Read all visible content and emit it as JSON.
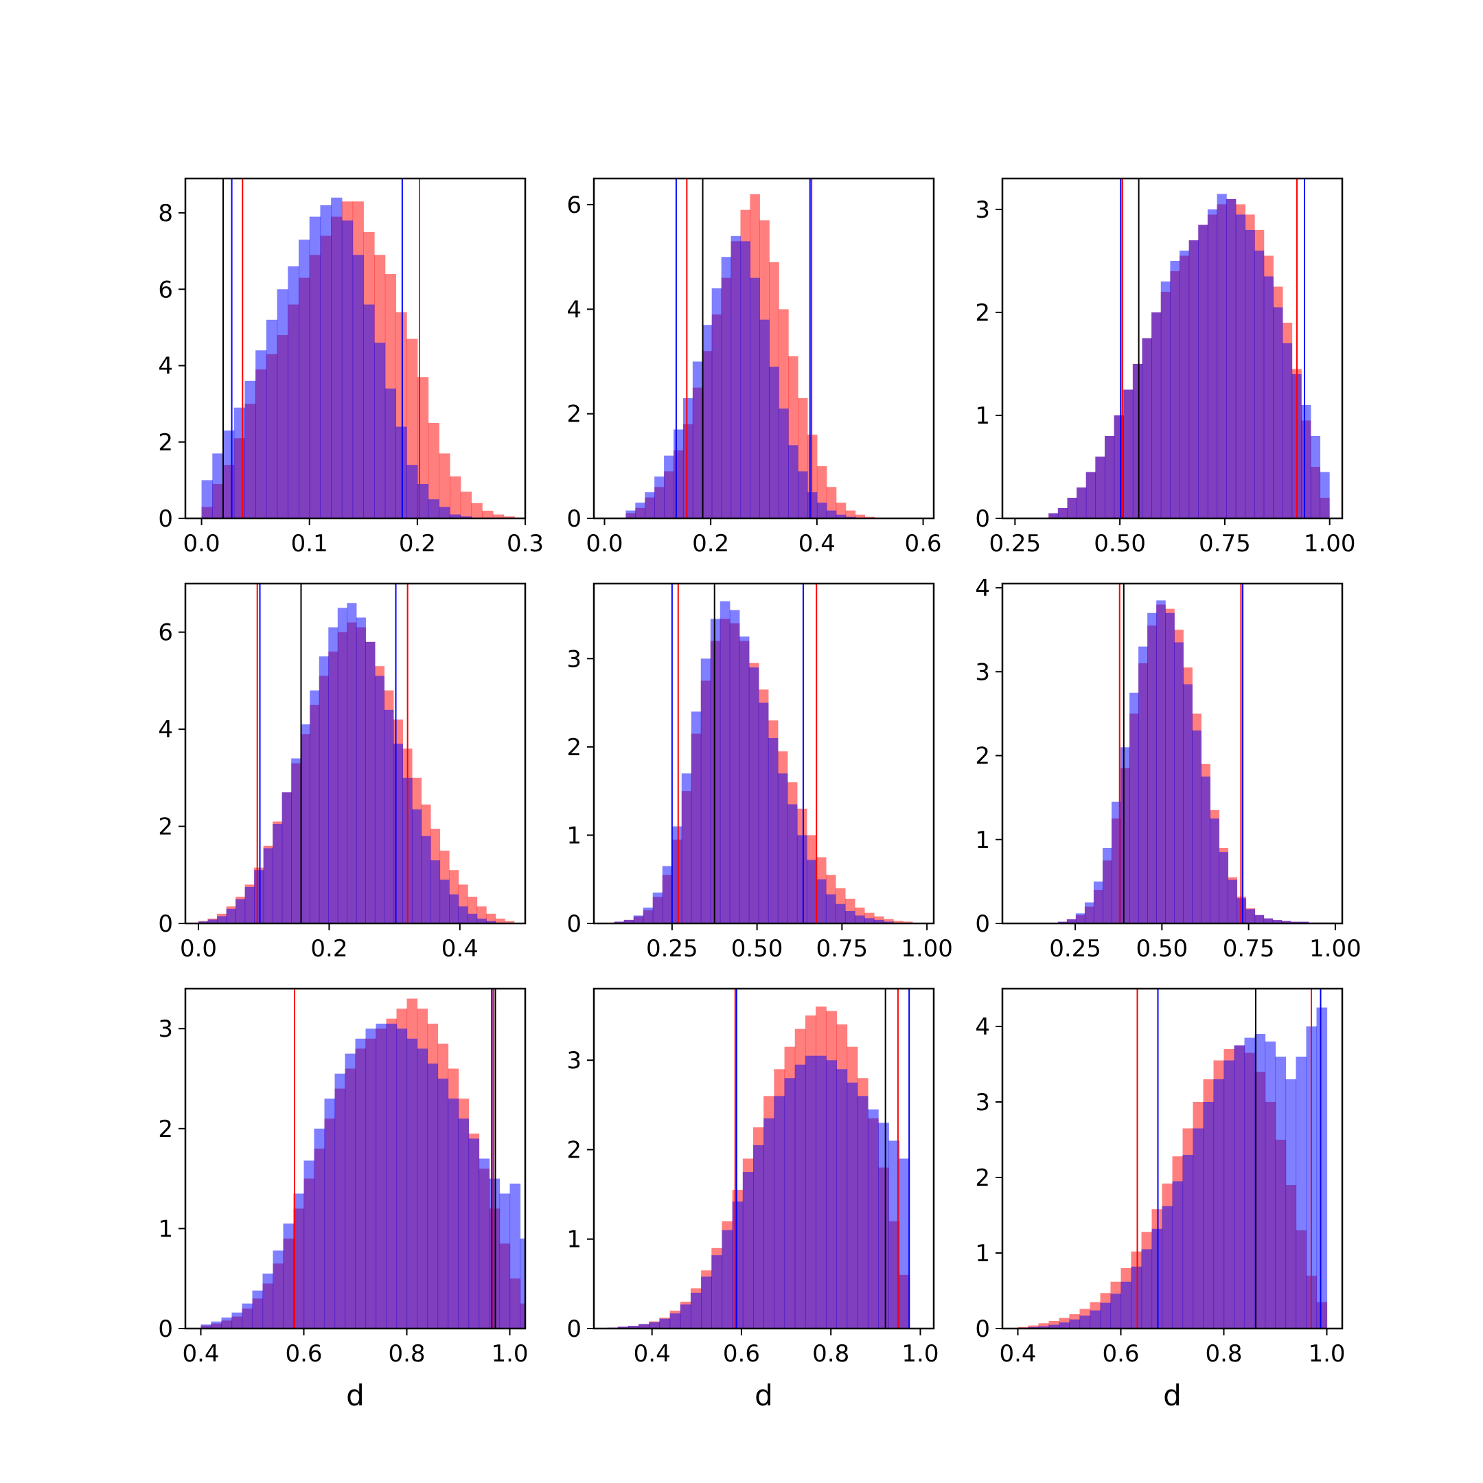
{
  "chart_data": [
    {
      "type": "histogram",
      "xlabel": "",
      "xlim": [
        -0.015,
        0.3
      ],
      "ylim": [
        0,
        8.9
      ],
      "xticks": [
        "0.0",
        "0.1",
        "0.2",
        "0.3"
      ],
      "xtick_values": [
        0,
        0.1,
        0.2,
        0.3
      ],
      "yticks": [
        "0",
        "2",
        "4",
        "6",
        "8"
      ],
      "ytick_values": [
        0,
        2,
        4,
        6,
        8
      ],
      "bin_start": 0.0,
      "bin_width": 0.01,
      "series": [
        {
          "color": "#ff0000",
          "values": [
            0.3,
            0.9,
            1.4,
            2.1,
            3.0,
            3.9,
            4.3,
            4.8,
            5.6,
            6.3,
            6.9,
            7.4,
            7.9,
            8.3,
            8.3,
            7.5,
            6.9,
            6.4,
            5.4,
            4.7,
            3.7,
            2.5,
            1.7,
            1.1,
            0.7,
            0.4,
            0.2,
            0.1,
            0.05,
            0.02
          ]
        },
        {
          "color": "#0000ff",
          "values": [
            1.0,
            1.7,
            2.3,
            2.9,
            3.6,
            4.4,
            5.2,
            6.0,
            6.6,
            7.3,
            7.9,
            8.2,
            8.4,
            7.8,
            6.9,
            5.6,
            4.6,
            3.4,
            2.4,
            1.4,
            0.9,
            0.5,
            0.3,
            0.1,
            0.05
          ]
        }
      ],
      "vlines": [
        {
          "color": "#000000",
          "x": 0.02
        },
        {
          "color": "#0000ff",
          "x": 0.028
        },
        {
          "color": "#ff0000",
          "x": 0.038
        },
        {
          "color": "#0000ff",
          "x": 0.186
        },
        {
          "color": "#ff0000",
          "x": 0.202
        }
      ]
    },
    {
      "type": "histogram",
      "xlabel": "",
      "xlim": [
        -0.02,
        0.62
      ],
      "ylim": [
        0,
        6.5
      ],
      "xticks": [
        "0.0",
        "0.2",
        "0.4",
        "0.6"
      ],
      "xtick_values": [
        0,
        0.2,
        0.4,
        0.6
      ],
      "yticks": [
        "0",
        "2",
        "4",
        "6"
      ],
      "ytick_values": [
        0,
        2,
        4,
        6
      ],
      "bin_start": 0.04,
      "bin_width": 0.018,
      "series": [
        {
          "color": "#ff0000",
          "values": [
            0.1,
            0.2,
            0.4,
            0.6,
            0.9,
            1.3,
            1.8,
            2.5,
            3.2,
            3.9,
            4.6,
            5.3,
            5.9,
            6.2,
            5.7,
            4.9,
            4.0,
            3.1,
            2.3,
            1.6,
            1.0,
            0.6,
            0.3,
            0.15,
            0.07,
            0.03
          ]
        },
        {
          "color": "#0000ff",
          "values": [
            0.15,
            0.3,
            0.5,
            0.8,
            1.2,
            1.7,
            2.3,
            3.0,
            3.7,
            4.4,
            5.0,
            5.4,
            5.3,
            4.6,
            3.8,
            2.9,
            2.1,
            1.4,
            0.9,
            0.5,
            0.3,
            0.15,
            0.07,
            0.03
          ]
        }
      ],
      "vlines": [
        {
          "color": "#0000ff",
          "x": 0.135
        },
        {
          "color": "#ff0000",
          "x": 0.155
        },
        {
          "color": "#000000",
          "x": 0.185
        },
        {
          "color": "#0000ff",
          "x": 0.387
        },
        {
          "color": "#ff0000",
          "x": 0.39
        }
      ]
    },
    {
      "type": "histogram",
      "xlabel": "",
      "xlim": [
        0.22,
        1.03
      ],
      "ylim": [
        0,
        3.3
      ],
      "xticks": [
        "0.25",
        "0.50",
        "0.75",
        "1.00"
      ],
      "xtick_values": [
        0.25,
        0.5,
        0.75,
        1.0
      ],
      "yticks": [
        "0",
        "1",
        "2",
        "3"
      ],
      "ytick_values": [
        0,
        1,
        2,
        3
      ],
      "bin_start": 0.33,
      "bin_width": 0.0223,
      "series": [
        {
          "color": "#ff0000",
          "values": [
            0.05,
            0.1,
            0.2,
            0.3,
            0.45,
            0.6,
            0.8,
            1.0,
            1.25,
            1.5,
            1.75,
            2.0,
            2.2,
            2.4,
            2.55,
            2.7,
            2.85,
            2.95,
            3.05,
            3.1,
            3.05,
            2.95,
            2.8,
            2.55,
            2.25,
            1.9,
            1.45,
            0.95,
            0.5,
            0.2
          ]
        },
        {
          "color": "#0000ff",
          "values": [
            0.05,
            0.1,
            0.2,
            0.3,
            0.45,
            0.6,
            0.8,
            1.0,
            1.25,
            1.5,
            1.75,
            2.0,
            2.3,
            2.5,
            2.6,
            2.7,
            2.85,
            3.0,
            3.15,
            3.1,
            2.95,
            2.8,
            2.6,
            2.35,
            2.05,
            1.7,
            1.4,
            1.1,
            0.8,
            0.45
          ]
        }
      ],
      "vlines": [
        {
          "color": "#0000ff",
          "x": 0.502
        },
        {
          "color": "#ff0000",
          "x": 0.506
        },
        {
          "color": "#000000",
          "x": 0.545
        },
        {
          "color": "#ff0000",
          "x": 0.922
        },
        {
          "color": "#0000ff",
          "x": 0.94
        }
      ]
    },
    {
      "type": "histogram",
      "xlabel": "",
      "xlim": [
        -0.02,
        0.5
      ],
      "ylim": [
        0,
        7.0
      ],
      "xticks": [
        "0.0",
        "0.2",
        "0.4"
      ],
      "xtick_values": [
        0,
        0.2,
        0.4
      ],
      "yticks": [
        "0",
        "2",
        "4",
        "6"
      ],
      "ytick_values": [
        0,
        2,
        4,
        6
      ],
      "bin_start": 0.0,
      "bin_width": 0.0142,
      "series": [
        {
          "color": "#ff0000",
          "values": [
            0.05,
            0.1,
            0.2,
            0.35,
            0.55,
            0.8,
            1.15,
            1.6,
            2.1,
            2.7,
            3.3,
            3.9,
            4.5,
            5.1,
            5.6,
            6.0,
            6.2,
            6.1,
            5.8,
            5.3,
            4.8,
            4.2,
            3.6,
            3.0,
            2.45,
            1.95,
            1.5,
            1.1,
            0.8,
            0.55,
            0.35,
            0.2,
            0.1,
            0.05
          ]
        },
        {
          "color": "#0000ff",
          "values": [
            0.04,
            0.08,
            0.15,
            0.3,
            0.5,
            0.75,
            1.1,
            1.55,
            2.05,
            2.7,
            3.4,
            4.1,
            4.8,
            5.5,
            6.1,
            6.5,
            6.6,
            6.3,
            5.8,
            5.1,
            4.4,
            3.7,
            3.0,
            2.35,
            1.8,
            1.3,
            0.9,
            0.6,
            0.35,
            0.2,
            0.1,
            0.05
          ]
        }
      ],
      "vlines": [
        {
          "color": "#ff0000",
          "x": 0.09
        },
        {
          "color": "#0000ff",
          "x": 0.094
        },
        {
          "color": "#000000",
          "x": 0.157
        },
        {
          "color": "#0000ff",
          "x": 0.302
        },
        {
          "color": "#ff0000",
          "x": 0.32
        }
      ]
    },
    {
      "type": "histogram",
      "xlabel": "",
      "xlim": [
        0.02,
        1.02
      ],
      "ylim": [
        0,
        3.85
      ],
      "xticks": [
        "0.25",
        "0.50",
        "0.75",
        "1.00"
      ],
      "xtick_values": [
        0.25,
        0.5,
        0.75,
        1.0
      ],
      "yticks": [
        "0",
        "1",
        "2",
        "3"
      ],
      "ytick_values": [
        0,
        1,
        2,
        3
      ],
      "bin_start": 0.08,
      "bin_width": 0.0283,
      "series": [
        {
          "color": "#ff0000",
          "values": [
            0.02,
            0.04,
            0.08,
            0.15,
            0.3,
            0.55,
            0.95,
            1.5,
            2.15,
            2.75,
            3.2,
            3.45,
            3.4,
            3.2,
            2.95,
            2.65,
            2.3,
            1.95,
            1.6,
            1.3,
            1.0,
            0.75,
            0.55,
            0.4,
            0.28,
            0.18,
            0.12,
            0.08,
            0.05,
            0.03,
            0.02
          ]
        },
        {
          "color": "#0000ff",
          "values": [
            0.02,
            0.04,
            0.09,
            0.18,
            0.35,
            0.65,
            1.1,
            1.7,
            2.4,
            3.0,
            3.45,
            3.65,
            3.55,
            3.25,
            2.9,
            2.5,
            2.1,
            1.7,
            1.35,
            1.0,
            0.72,
            0.5,
            0.33,
            0.22,
            0.14,
            0.09,
            0.06,
            0.04,
            0.02
          ]
        }
      ],
      "vlines": [
        {
          "color": "#0000ff",
          "x": 0.25
        },
        {
          "color": "#ff0000",
          "x": 0.268
        },
        {
          "color": "#000000",
          "x": 0.375
        },
        {
          "color": "#0000ff",
          "x": 0.636
        },
        {
          "color": "#ff0000",
          "x": 0.675
        }
      ]
    },
    {
      "type": "histogram",
      "xlabel": "",
      "xlim": [
        0.04,
        1.02
      ],
      "ylim": [
        0,
        4.05
      ],
      "xticks": [
        "0.25",
        "0.50",
        "0.75",
        "1.00"
      ],
      "xtick_values": [
        0.25,
        0.5,
        0.75,
        1.0
      ],
      "yticks": [
        "0",
        "1",
        "2",
        "3",
        "4"
      ],
      "ytick_values": [
        0,
        1,
        2,
        3,
        4
      ],
      "bin_start": 0.2,
      "bin_width": 0.0258,
      "series": [
        {
          "color": "#ff0000",
          "values": [
            0.02,
            0.05,
            0.1,
            0.2,
            0.4,
            0.75,
            1.25,
            1.85,
            2.5,
            3.1,
            3.55,
            3.8,
            3.75,
            3.5,
            3.05,
            2.5,
            1.9,
            1.35,
            0.9,
            0.55,
            0.32,
            0.18,
            0.1,
            0.06,
            0.04,
            0.03,
            0.02,
            0.02,
            0.01,
            0.01,
            0.01
          ]
        },
        {
          "color": "#0000ff",
          "values": [
            0.02,
            0.05,
            0.12,
            0.25,
            0.5,
            0.9,
            1.45,
            2.1,
            2.75,
            3.3,
            3.7,
            3.85,
            3.7,
            3.35,
            2.85,
            2.3,
            1.75,
            1.25,
            0.85,
            0.52,
            0.3,
            0.17,
            0.1,
            0.06,
            0.04,
            0.03,
            0.02,
            0.02,
            0.01,
            0.01,
            0.01
          ]
        }
      ],
      "vlines": [
        {
          "color": "#ff0000",
          "x": 0.378
        },
        {
          "color": "#000000",
          "x": 0.39
        },
        {
          "color": "#ff0000",
          "x": 0.728
        },
        {
          "color": "#0000ff",
          "x": 0.733
        }
      ]
    },
    {
      "type": "histogram",
      "xlabel": "d",
      "xlim": [
        0.37,
        1.03
      ],
      "ylim": [
        0,
        3.4
      ],
      "xticks": [
        "0.4",
        "0.6",
        "0.8",
        "1.0"
      ],
      "xtick_values": [
        0.4,
        0.6,
        0.8,
        1.0
      ],
      "yticks": [
        "0",
        "1",
        "2",
        "3"
      ],
      "ytick_values": [
        0,
        1,
        2,
        3
      ],
      "bin_start": 0.4,
      "bin_width": 0.02,
      "series": [
        {
          "color": "#ff0000",
          "values": [
            0.03,
            0.05,
            0.08,
            0.12,
            0.2,
            0.3,
            0.45,
            0.65,
            0.9,
            1.2,
            1.5,
            1.8,
            2.1,
            2.4,
            2.6,
            2.8,
            2.9,
            3.0,
            3.1,
            3.2,
            3.3,
            3.2,
            3.05,
            2.85,
            2.6,
            2.3,
            1.95,
            1.6,
            1.2,
            0.85,
            0.5,
            0.25
          ]
        },
        {
          "color": "#0000ff",
          "values": [
            0.04,
            0.07,
            0.11,
            0.16,
            0.25,
            0.38,
            0.55,
            0.78,
            1.05,
            1.35,
            1.68,
            2.0,
            2.3,
            2.55,
            2.75,
            2.9,
            3.0,
            3.05,
            3.05,
            3.0,
            2.9,
            2.8,
            2.65,
            2.5,
            2.3,
            2.1,
            1.9,
            1.7,
            1.5,
            1.35,
            1.45,
            0.9
          ]
        }
      ],
      "vlines": [
        {
          "color": "#ff0000",
          "x": 0.582
        },
        {
          "color": "#0000ff",
          "x": 0.965
        },
        {
          "color": "#ff0000",
          "x": 0.968
        },
        {
          "color": "#000000",
          "x": 0.972
        }
      ]
    },
    {
      "type": "histogram",
      "xlabel": "d",
      "xlim": [
        0.27,
        1.03
      ],
      "ylim": [
        0,
        3.8
      ],
      "xticks": [
        "0.4",
        "0.6",
        "0.8",
        "1.0"
      ],
      "xtick_values": [
        0.4,
        0.6,
        0.8,
        1.0
      ],
      "yticks": [
        "0",
        "1",
        "2",
        "3"
      ],
      "ytick_values": [
        0,
        1,
        2,
        3
      ],
      "bin_start": 0.3,
      "bin_width": 0.0233,
      "series": [
        {
          "color": "#ff0000",
          "values": [
            0.01,
            0.02,
            0.03,
            0.05,
            0.08,
            0.12,
            0.2,
            0.3,
            0.45,
            0.65,
            0.9,
            1.2,
            1.55,
            1.9,
            2.25,
            2.6,
            2.9,
            3.15,
            3.35,
            3.5,
            3.6,
            3.55,
            3.4,
            3.15,
            2.8,
            2.35,
            1.8,
            1.2,
            0.6
          ]
        },
        {
          "color": "#0000ff",
          "values": [
            0.01,
            0.02,
            0.03,
            0.05,
            0.07,
            0.11,
            0.17,
            0.27,
            0.4,
            0.58,
            0.82,
            1.1,
            1.42,
            1.75,
            2.05,
            2.35,
            2.6,
            2.8,
            2.95,
            3.05,
            3.05,
            3.0,
            2.9,
            2.75,
            2.6,
            2.45,
            2.3,
            2.1,
            1.9
          ]
        }
      ],
      "vlines": [
        {
          "color": "#ff0000",
          "x": 0.586
        },
        {
          "color": "#0000ff",
          "x": 0.589
        },
        {
          "color": "#000000",
          "x": 0.922
        },
        {
          "color": "#ff0000",
          "x": 0.95
        },
        {
          "color": "#0000ff",
          "x": 0.975
        }
      ]
    },
    {
      "type": "histogram",
      "xlabel": "d",
      "xlim": [
        0.37,
        1.03
      ],
      "ylim": [
        0,
        4.5
      ],
      "xticks": [
        "0.4",
        "0.6",
        "0.8",
        "1.0"
      ],
      "xtick_values": [
        0.4,
        0.6,
        0.8,
        1.0
      ],
      "yticks": [
        "0",
        "1",
        "2",
        "3",
        "4"
      ],
      "ytick_values": [
        0,
        1,
        2,
        3,
        4
      ],
      "bin_start": 0.4,
      "bin_width": 0.02,
      "series": [
        {
          "color": "#ff0000",
          "values": [
            0.02,
            0.04,
            0.07,
            0.1,
            0.14,
            0.19,
            0.26,
            0.35,
            0.47,
            0.62,
            0.8,
            1.02,
            1.28,
            1.58,
            1.92,
            2.28,
            2.65,
            3.0,
            3.3,
            3.55,
            3.7,
            3.75,
            3.65,
            3.4,
            3.0,
            2.5,
            1.9,
            1.3,
            0.7,
            0.35
          ]
        },
        {
          "color": "#0000ff",
          "values": [
            0.01,
            0.02,
            0.03,
            0.05,
            0.08,
            0.12,
            0.17,
            0.24,
            0.34,
            0.46,
            0.62,
            0.82,
            1.05,
            1.32,
            1.62,
            1.95,
            2.3,
            2.65,
            3.0,
            3.3,
            3.55,
            3.75,
            3.85,
            3.9,
            3.8,
            3.6,
            3.3,
            3.6,
            4.0,
            4.25
          ]
        }
      ],
      "vlines": [
        {
          "color": "#ff0000",
          "x": 0.632
        },
        {
          "color": "#0000ff",
          "x": 0.672
        },
        {
          "color": "#000000",
          "x": 0.862
        },
        {
          "color": "#ff0000",
          "x": 0.97
        },
        {
          "color": "#0000ff",
          "x": 0.988
        }
      ]
    }
  ]
}
